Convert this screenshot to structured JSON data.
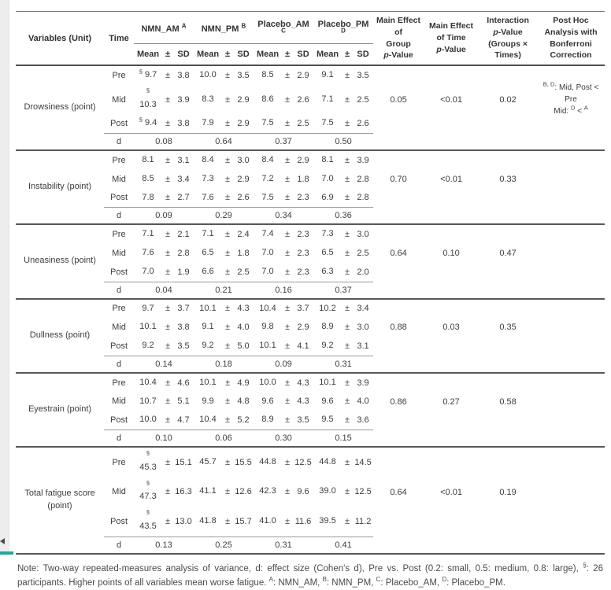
{
  "page": {
    "background": "#ffffff",
    "left_strip_color": "#ededed",
    "artifact_dark_color": "#4a4a4a",
    "artifact_teal_color": "#27a595"
  },
  "table": {
    "symbols": {
      "pm": "±",
      "d_label": "d",
      "participants_mark": "§"
    },
    "header": {
      "variables": "Variables (Unit)",
      "time": "Time",
      "groups": [
        {
          "label": "NMN_AM",
          "sup": "A"
        },
        {
          "label": "NMN_PM",
          "sup": "B"
        },
        {
          "label": "Placebo_AM",
          "sup": "C"
        },
        {
          "label": "Placebo_PM",
          "sup": "D"
        }
      ],
      "subcols": [
        "Mean",
        "±",
        "SD"
      ],
      "stats": [
        "Main Effect of\nGroup\np-Value",
        "Main Effect\nof Time\np-Value",
        "Interaction\np-Value\n(Groups ×\nTimes)",
        "Post Hoc\nAnalysis with\nBonferroni\nCorrection"
      ]
    },
    "sections": [
      {
        "variable": "Drowsiness (point)",
        "rows": [
          {
            "time": "Pre",
            "values": [
              {
                "sup": "§",
                "mean": "9.7",
                "sd": "3.8"
              },
              {
                "mean": "10.0",
                "sd": "3.5"
              },
              {
                "mean": "8.5",
                "sd": "2.9"
              },
              {
                "mean": "9.1",
                "sd": "3.5"
              }
            ]
          },
          {
            "time": "Mid",
            "values": [
              {
                "sup": "§",
                "wrap": true,
                "mean": "10.3",
                "sd": "3.9"
              },
              {
                "mean": "8.3",
                "sd": "2.9"
              },
              {
                "mean": "8.6",
                "sd": "2.6"
              },
              {
                "mean": "7.1",
                "sd": "2.5"
              }
            ]
          },
          {
            "time": "Post",
            "values": [
              {
                "sup": "§",
                "mean": "9.4",
                "sd": "3.8"
              },
              {
                "mean": "7.9",
                "sd": "2.9"
              },
              {
                "mean": "7.5",
                "sd": "2.5"
              },
              {
                "mean": "7.5",
                "sd": "2.6"
              }
            ]
          }
        ],
        "d": [
          "0.08",
          "0.64",
          "0.37",
          "0.50"
        ],
        "p_group": "0.05",
        "p_time": "<0.01",
        "p_interaction": "0.02",
        "post_hoc": [
          {
            "s": "B, D"
          },
          {
            "t": ": Mid, Post < Pre"
          },
          {
            "br": true
          },
          {
            "t": "Mid: "
          },
          {
            "s": "D"
          },
          {
            "t": " < "
          },
          {
            "s": "A"
          }
        ]
      },
      {
        "variable": "Instability (point)",
        "rows": [
          {
            "time": "Pre",
            "values": [
              {
                "mean": "8.1",
                "sd": "3.1"
              },
              {
                "mean": "8.4",
                "sd": "3.0"
              },
              {
                "mean": "8.4",
                "sd": "2.9"
              },
              {
                "mean": "8.1",
                "sd": "3.9"
              }
            ]
          },
          {
            "time": "Mid",
            "values": [
              {
                "mean": "8.5",
                "sd": "3.4"
              },
              {
                "mean": "7.3",
                "sd": "2.9"
              },
              {
                "mean": "7.2",
                "sd": "1.8"
              },
              {
                "mean": "7.0",
                "sd": "2.8"
              }
            ]
          },
          {
            "time": "Post",
            "values": [
              {
                "mean": "7.8",
                "sd": "2.7"
              },
              {
                "mean": "7.6",
                "sd": "2.6"
              },
              {
                "mean": "7.5",
                "sd": "2.3"
              },
              {
                "mean": "6.9",
                "sd": "2.8"
              }
            ]
          }
        ],
        "d": [
          "0.09",
          "0.29",
          "0.34",
          "0.36"
        ],
        "p_group": "0.70",
        "p_time": "<0.01",
        "p_interaction": "0.33",
        "post_hoc": null
      },
      {
        "variable": "Uneasiness (point)",
        "rows": [
          {
            "time": "Pre",
            "values": [
              {
                "mean": "7.1",
                "sd": "2.1"
              },
              {
                "mean": "7.1",
                "sd": "2.4"
              },
              {
                "mean": "7.4",
                "sd": "2.3"
              },
              {
                "mean": "7.3",
                "sd": "3.0"
              }
            ]
          },
          {
            "time": "Mid",
            "values": [
              {
                "mean": "7.6",
                "sd": "2.8"
              },
              {
                "mean": "6.5",
                "sd": "1.8"
              },
              {
                "mean": "7.0",
                "sd": "2.3"
              },
              {
                "mean": "6.5",
                "sd": "2.5"
              }
            ]
          },
          {
            "time": "Post",
            "values": [
              {
                "mean": "7.0",
                "sd": "1.9"
              },
              {
                "mean": "6.6",
                "sd": "2.5"
              },
              {
                "mean": "7.0",
                "sd": "2.3"
              },
              {
                "mean": "6.3",
                "sd": "2.0"
              }
            ]
          }
        ],
        "d": [
          "0.04",
          "0.21",
          "0.16",
          "0.37"
        ],
        "p_group": "0.64",
        "p_time": "0.10",
        "p_interaction": "0.47",
        "post_hoc": null
      },
      {
        "variable": "Dullness (point)",
        "rows": [
          {
            "time": "Pre",
            "values": [
              {
                "mean": "9.7",
                "sd": "3.7"
              },
              {
                "mean": "10.1",
                "sd": "4.3"
              },
              {
                "mean": "10.4",
                "sd": "3.7"
              },
              {
                "mean": "10.2",
                "sd": "3.4"
              }
            ]
          },
          {
            "time": "Mid",
            "values": [
              {
                "mean": "10.1",
                "sd": "3.8"
              },
              {
                "mean": "9.1",
                "sd": "4.0"
              },
              {
                "mean": "9.8",
                "sd": "2.9"
              },
              {
                "mean": "8.9",
                "sd": "3.0"
              }
            ]
          },
          {
            "time": "Post",
            "values": [
              {
                "mean": "9.2",
                "sd": "3.5"
              },
              {
                "mean": "9.2",
                "sd": "5.0"
              },
              {
                "mean": "10.1",
                "sd": "4.1"
              },
              {
                "mean": "9.2",
                "sd": "3.1"
              }
            ]
          }
        ],
        "d": [
          "0.14",
          "0.18",
          "0.09",
          "0.31"
        ],
        "p_group": "0.88",
        "p_time": "0.03",
        "p_interaction": "0.35",
        "post_hoc": null
      },
      {
        "variable": "Eyestrain (point)",
        "rows": [
          {
            "time": "Pre",
            "values": [
              {
                "mean": "10.4",
                "sd": "4.6"
              },
              {
                "mean": "10.1",
                "sd": "4.9"
              },
              {
                "mean": "10.0",
                "sd": "4.3"
              },
              {
                "mean": "10.1",
                "sd": "3.9"
              }
            ]
          },
          {
            "time": "Mid",
            "values": [
              {
                "mean": "10.7",
                "sd": "5.1"
              },
              {
                "mean": "9.9",
                "sd": "4.8"
              },
              {
                "mean": "9.6",
                "sd": "4.3"
              },
              {
                "mean": "9.6",
                "sd": "4.0"
              }
            ]
          },
          {
            "time": "Post",
            "values": [
              {
                "mean": "10.0",
                "sd": "4.7"
              },
              {
                "mean": "10.4",
                "sd": "5.2"
              },
              {
                "mean": "8.9",
                "sd": "3.5"
              },
              {
                "mean": "9.5",
                "sd": "3.6"
              }
            ]
          }
        ],
        "d": [
          "0.10",
          "0.06",
          "0.30",
          "0.15"
        ],
        "p_group": "0.86",
        "p_time": "0.27",
        "p_interaction": "0.58",
        "post_hoc": null
      },
      {
        "variable": "Total fatigue score (point)",
        "rows": [
          {
            "time": "Pre",
            "values": [
              {
                "sup": "§",
                "wrap": true,
                "mean": "45.3",
                "sd": "15.1"
              },
              {
                "mean": "45.7",
                "sd": "15.5"
              },
              {
                "mean": "44.8",
                "sd": "12.5"
              },
              {
                "mean": "44.8",
                "sd": "14.5"
              }
            ]
          },
          {
            "time": "Mid",
            "values": [
              {
                "sup": "§",
                "wrap": true,
                "mean": "47.3",
                "sd": "16.3"
              },
              {
                "mean": "41.1",
                "sd": "12.6"
              },
              {
                "mean": "42.3",
                "sd": "9.6"
              },
              {
                "mean": "39.0",
                "sd": "12.5"
              }
            ]
          },
          {
            "time": "Post",
            "values": [
              {
                "sup": "§",
                "wrap": true,
                "mean": "43.5",
                "sd": "13.0"
              },
              {
                "mean": "41.8",
                "sd": "15.7"
              },
              {
                "mean": "41.0",
                "sd": "11.6"
              },
              {
                "mean": "39.5",
                "sd": "11.2"
              }
            ]
          }
        ],
        "d": [
          "0.13",
          "0.25",
          "0.31",
          "0.41"
        ],
        "p_group": "0.64",
        "p_time": "<0.01",
        "p_interaction": "0.19",
        "post_hoc": null
      }
    ],
    "note_segments": [
      {
        "t": "Note: Two-way repeated-measures analysis of variance, d: effect size (Cohen's d), Pre vs. Post (0.2: small, 0.5: medium, 0.8: large), "
      },
      {
        "s": "§"
      },
      {
        "t": ": 26 participants. Higher points of all variables mean worse fatigue. "
      },
      {
        "s": "A"
      },
      {
        "t": ": NMN_AM, "
      },
      {
        "s": "B"
      },
      {
        "t": ": NMN_PM, "
      },
      {
        "s": "C"
      },
      {
        "t": ": Placebo_AM, "
      },
      {
        "s": "D"
      },
      {
        "t": ": Placebo_PM."
      }
    ]
  }
}
